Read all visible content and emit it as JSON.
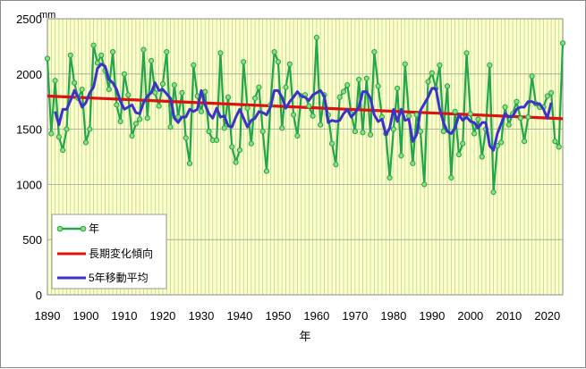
{
  "chart_data": {
    "type": "line",
    "unit_label": "mm",
    "xlabel": "年",
    "xlim": [
      1890,
      2024
    ],
    "ylim": [
      0,
      2500
    ],
    "x_ticks": [
      "1890",
      "1900",
      "1910",
      "1920",
      "1930",
      "1940",
      "1950",
      "1960",
      "1970",
      "1980",
      "1990",
      "2000",
      "2010",
      "2020"
    ],
    "y_ticks": [
      "0",
      "500",
      "1000",
      "1500",
      "2000",
      "2500"
    ],
    "grid": true,
    "legend_position": "lower-left",
    "colors": {
      "plot_background": "#ffffcc",
      "grid": "#b8d890"
    },
    "series": [
      {
        "name": "年",
        "color": "#22a64a",
        "marker_fill": "#90dd78",
        "x_start": 1890,
        "values": [
          2140,
          1460,
          1940,
          1430,
          1310,
          1500,
          2170,
          1920,
          1780,
          1860,
          1380,
          1500,
          2260,
          2100,
          2170,
          2030,
          1860,
          2200,
          1720,
          1570,
          2000,
          1810,
          1440,
          1550,
          1590,
          2220,
          1600,
          2120,
          1830,
          1710,
          1910,
          2200,
          1520,
          1900,
          1610,
          1830,
          1420,
          1190,
          2080,
          1800,
          1660,
          1840,
          1480,
          1400,
          1400,
          2190,
          1510,
          1790,
          1340,
          1200,
          1310,
          2110,
          1690,
          1370,
          1780,
          1880,
          1480,
          1120,
          1720,
          2200,
          2110,
          1510,
          1880,
          2090,
          1630,
          1440,
          1800,
          1810,
          1710,
          1620,
          2330,
          1540,
          1810,
          1630,
          1370,
          1180,
          1790,
          1840,
          1900,
          1640,
          1480,
          1950,
          1470,
          1960,
          1450,
          2200,
          1890,
          1610,
          1460,
          1060,
          1500,
          1870,
          1260,
          2090,
          1620,
          1190,
          1630,
          1480,
          1000,
          1930,
          2010,
          1870,
          2080,
          1480,
          1890,
          1060,
          1660,
          1270,
          1370,
          2190,
          1640,
          1460,
          1590,
          1250,
          1500,
          2080,
          930,
          1350,
          1380,
          1700,
          1540,
          1640,
          1750,
          1600,
          1390,
          1610,
          1980,
          1730,
          1700,
          1700,
          1800,
          1830,
          1390,
          1340,
          2280
        ]
      },
      {
        "name": "長期変化傾向",
        "color": "#e01010",
        "x_start": 1890,
        "x_end": 2024,
        "start_value": 1800,
        "end_value": 1595
      },
      {
        "name": "5年移動平均",
        "color": "#3c32c8",
        "x_start": 1892,
        "values": [
          1660,
          1540,
          1680,
          1680,
          1760,
          1850,
          1790,
          1700,
          1740,
          1830,
          1880,
          2050,
          2090,
          2070,
          1950,
          1920,
          1860,
          1750,
          1680,
          1700,
          1720,
          1650,
          1640,
          1740,
          1800,
          1830,
          1920,
          1850,
          1860,
          1820,
          1780,
          1600,
          1560,
          1610,
          1610,
          1680,
          1660,
          1680,
          1850,
          1720,
          1640,
          1600,
          1690,
          1610,
          1620,
          1530,
          1520,
          1610,
          1680,
          1600,
          1520,
          1580,
          1600,
          1660,
          1650,
          1630,
          1700,
          1850,
          1850,
          1790,
          1690,
          1750,
          1790,
          1840,
          1800,
          1790,
          1760,
          1810,
          1830,
          1850,
          1800,
          1560,
          1580,
          1570,
          1580,
          1640,
          1680,
          1610,
          1650,
          1700,
          1840,
          1840,
          1780,
          1630,
          1570,
          1590,
          1450,
          1510,
          1680,
          1570,
          1680,
          1580,
          1590,
          1390,
          1450,
          1670,
          1730,
          1790,
          1870,
          1870,
          1680,
          1560,
          1480,
          1460,
          1510,
          1630,
          1580,
          1610,
          1570,
          1560,
          1510,
          1560,
          1560,
          1350,
          1310,
          1460,
          1550,
          1640,
          1610,
          1620,
          1680,
          1700,
          1700,
          1750,
          1750,
          1730,
          1730,
          1680,
          1600,
          1740
        ]
      }
    ]
  }
}
